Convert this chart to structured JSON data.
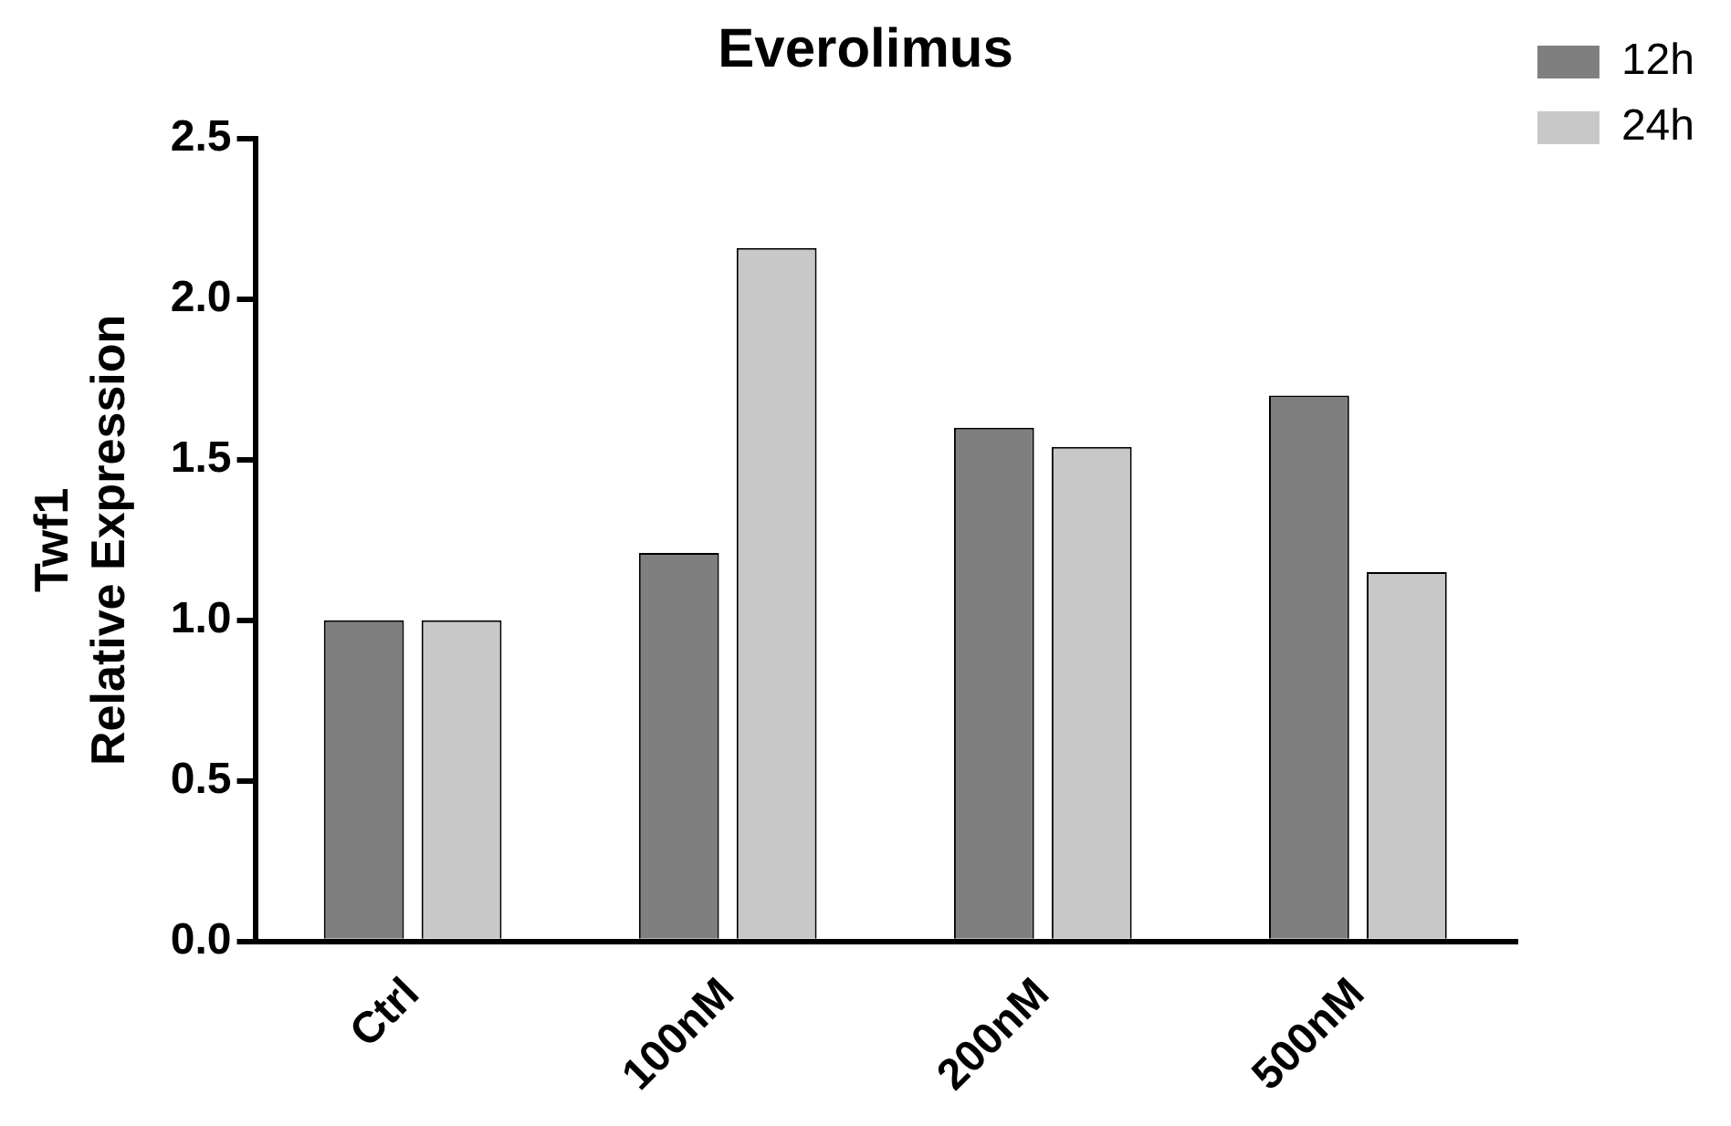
{
  "chart_data": {
    "type": "bar",
    "title": "Everolimus",
    "ylabel": "Twf1\nRelative Expression",
    "categories": [
      "Ctrl",
      "100nM",
      "200nM",
      "500nM"
    ],
    "series": [
      {
        "name": "12h",
        "color": "#7f7f7f",
        "values": [
          1.0,
          1.21,
          1.6,
          1.7
        ]
      },
      {
        "name": "24h",
        "color": "#c8c8c8",
        "values": [
          1.0,
          2.16,
          1.54,
          1.15
        ]
      }
    ],
    "ylim": [
      0,
      2.5
    ],
    "yticks": [
      {
        "value": 0,
        "label": "0.0"
      },
      0.5,
      {
        "value": 1,
        "label": "1.0"
      },
      1.5,
      {
        "value": 2,
        "label": "2.0"
      },
      2.5
    ],
    "grid": false,
    "legend": "top right"
  }
}
